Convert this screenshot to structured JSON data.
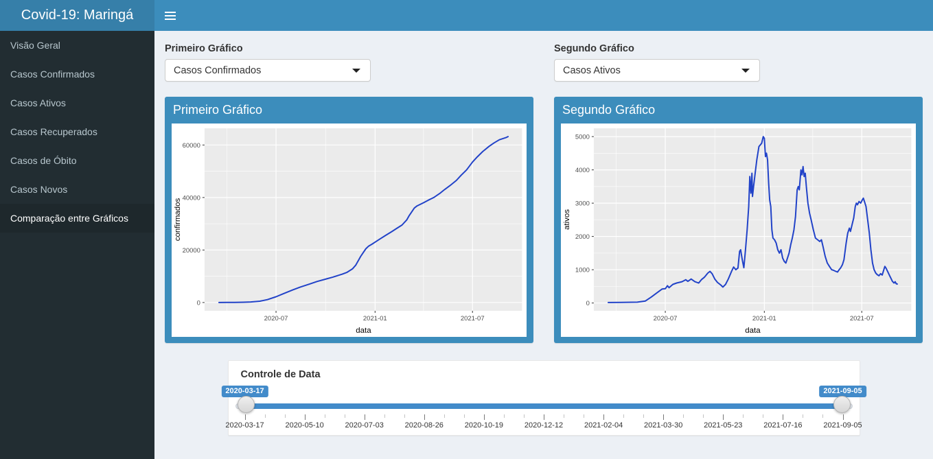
{
  "header": {
    "title": "Covid-19: Maringá"
  },
  "sidebar": {
    "items": [
      {
        "name": "visao-geral",
        "label": "Visão Geral",
        "active": false
      },
      {
        "name": "casos-confirmados",
        "label": "Casos Confirmados",
        "active": false
      },
      {
        "name": "casos-ativos",
        "label": "Casos Ativos",
        "active": false
      },
      {
        "name": "casos-recuperados",
        "label": "Casos Recuperados",
        "active": false
      },
      {
        "name": "casos-de-obito",
        "label": "Casos de Óbito",
        "active": false
      },
      {
        "name": "casos-novos",
        "label": "Casos Novos",
        "active": false
      },
      {
        "name": "comparacao-entre-graficos",
        "label": "Comparação entre Gráficos",
        "active": true
      }
    ]
  },
  "controls": {
    "first": {
      "label": "Primeiro Gráfico",
      "value": "Casos Confirmados"
    },
    "second": {
      "label": "Segundo Gráfico",
      "value": "Casos Ativos"
    }
  },
  "boxes": {
    "first_title": "Primeiro Gráfico",
    "second_title": "Segundo Gráfico"
  },
  "slider": {
    "title": "Controle de Data",
    "from_value": "2020-03-17",
    "to_value": "2021-09-05",
    "ticks": [
      "2020-03-17",
      "2020-05-10",
      "2020-07-03",
      "2020-08-26",
      "2020-10-19",
      "2020-12-12",
      "2021-02-04",
      "2021-03-30",
      "2021-05-23",
      "2021-07-16",
      "2021-09-05"
    ]
  },
  "colors": {
    "navbar": "#3c8dbc",
    "logo_bg": "#367fa9",
    "box_bg": "#3c8dbc",
    "sidebar_bg": "#222d32",
    "sidebar_active_bg": "#1e282c",
    "sidebar_text": "#b8c7ce",
    "content_bg": "#ecf0f5",
    "panel_bg": "#ebebeb",
    "line": "#2142c8",
    "slider_accent": "#428bca"
  },
  "chart_data": [
    {
      "type": "line",
      "title": "Primeiro Gráfico",
      "xlabel": "data",
      "ylabel": "confirmados",
      "legend": "none",
      "grid": true,
      "x_major": [
        {
          "date": "2020-07-01",
          "label": "2020-07"
        },
        {
          "date": "2021-01-01",
          "label": "2021-01"
        },
        {
          "date": "2021-07-01",
          "label": "2021-07"
        }
      ],
      "x_minor": [
        "2020-04-01",
        "2020-10-01",
        "2021-04-01",
        "2021-10-01"
      ],
      "y_major": [
        0,
        20000,
        40000,
        60000
      ],
      "y_minor": [
        10000,
        30000,
        50000
      ],
      "ylim": [
        0,
        63200
      ],
      "points": [
        [
          "2020-03-17",
          5
        ],
        [
          "2020-04-01",
          30
        ],
        [
          "2020-04-15",
          60
        ],
        [
          "2020-05-01",
          120
        ],
        [
          "2020-05-15",
          220
        ],
        [
          "2020-06-01",
          500
        ],
        [
          "2020-06-15",
          1100
        ],
        [
          "2020-07-01",
          2200
        ],
        [
          "2020-07-15",
          3400
        ],
        [
          "2020-08-01",
          4800
        ],
        [
          "2020-08-15",
          5900
        ],
        [
          "2020-09-01",
          7000
        ],
        [
          "2020-09-15",
          8000
        ],
        [
          "2020-10-01",
          8900
        ],
        [
          "2020-10-15",
          9700
        ],
        [
          "2020-11-01",
          10800
        ],
        [
          "2020-11-10",
          11500
        ],
        [
          "2020-11-20",
          12800
        ],
        [
          "2020-11-26",
          14200
        ],
        [
          "2020-12-01",
          16000
        ],
        [
          "2020-12-05",
          17500
        ],
        [
          "2020-12-10",
          19000
        ],
        [
          "2020-12-15",
          20500
        ],
        [
          "2020-12-20",
          21500
        ],
        [
          "2020-12-26",
          22200
        ],
        [
          "2021-01-01",
          23000
        ],
        [
          "2021-01-10",
          24200
        ],
        [
          "2021-01-20",
          25500
        ],
        [
          "2021-02-01",
          27000
        ],
        [
          "2021-02-10",
          28200
        ],
        [
          "2021-02-20",
          29500
        ],
        [
          "2021-03-01",
          31500
        ],
        [
          "2021-03-05",
          33000
        ],
        [
          "2021-03-10",
          34500
        ],
        [
          "2021-03-15",
          36000
        ],
        [
          "2021-03-20",
          36800
        ],
        [
          "2021-04-01",
          38000
        ],
        [
          "2021-04-10",
          39000
        ],
        [
          "2021-04-20",
          40000
        ],
        [
          "2021-05-01",
          41500
        ],
        [
          "2021-05-10",
          43000
        ],
        [
          "2021-05-20",
          44500
        ],
        [
          "2021-06-01",
          46500
        ],
        [
          "2021-06-10",
          48500
        ],
        [
          "2021-06-20",
          50500
        ],
        [
          "2021-07-01",
          53500
        ],
        [
          "2021-07-10",
          55500
        ],
        [
          "2021-07-20",
          57500
        ],
        [
          "2021-08-01",
          59500
        ],
        [
          "2021-08-10",
          60800
        ],
        [
          "2021-08-20",
          62000
        ],
        [
          "2021-09-01",
          62800
        ],
        [
          "2021-09-05",
          63200
        ]
      ]
    },
    {
      "type": "line",
      "title": "Segundo Gráfico",
      "xlabel": "data",
      "ylabel": "ativos",
      "legend": "none",
      "grid": true,
      "x_major": [
        {
          "date": "2020-07-01",
          "label": "2020-07"
        },
        {
          "date": "2021-01-01",
          "label": "2021-01"
        },
        {
          "date": "2021-07-01",
          "label": "2021-07"
        }
      ],
      "x_minor": [
        "2020-04-01",
        "2020-10-01",
        "2021-04-01",
        "2021-10-01"
      ],
      "y_major": [
        0,
        1000,
        2000,
        3000,
        4000,
        5000
      ],
      "y_minor": [
        500,
        1500,
        2500,
        3500,
        4500
      ],
      "ylim": [
        0,
        5000
      ],
      "points": [
        [
          "2020-03-17",
          15
        ],
        [
          "2020-04-10",
          20
        ],
        [
          "2020-05-10",
          25
        ],
        [
          "2020-05-25",
          60
        ],
        [
          "2020-06-05",
          180
        ],
        [
          "2020-06-15",
          300
        ],
        [
          "2020-06-25",
          420
        ],
        [
          "2020-07-01",
          430
        ],
        [
          "2020-07-05",
          520
        ],
        [
          "2020-07-08",
          460
        ],
        [
          "2020-07-15",
          560
        ],
        [
          "2020-07-22",
          600
        ],
        [
          "2020-08-01",
          640
        ],
        [
          "2020-08-08",
          700
        ],
        [
          "2020-08-12",
          650
        ],
        [
          "2020-08-18",
          720
        ],
        [
          "2020-08-25",
          640
        ],
        [
          "2020-09-01",
          600
        ],
        [
          "2020-09-06",
          700
        ],
        [
          "2020-09-12",
          780
        ],
        [
          "2020-09-18",
          900
        ],
        [
          "2020-09-22",
          950
        ],
        [
          "2020-09-26",
          880
        ],
        [
          "2020-10-01",
          720
        ],
        [
          "2020-10-06",
          620
        ],
        [
          "2020-10-12",
          540
        ],
        [
          "2020-10-16",
          480
        ],
        [
          "2020-10-21",
          560
        ],
        [
          "2020-10-26",
          720
        ],
        [
          "2020-11-01",
          950
        ],
        [
          "2020-11-05",
          1080
        ],
        [
          "2020-11-09",
          1000
        ],
        [
          "2020-11-13",
          1050
        ],
        [
          "2020-11-16",
          1550
        ],
        [
          "2020-11-18",
          1600
        ],
        [
          "2020-11-21",
          1300
        ],
        [
          "2020-11-24",
          1060
        ],
        [
          "2020-11-27",
          1600
        ],
        [
          "2020-11-30",
          2200
        ],
        [
          "2020-12-03",
          2900
        ],
        [
          "2020-12-05",
          3800
        ],
        [
          "2020-12-07",
          3300
        ],
        [
          "2020-12-09",
          3900
        ],
        [
          "2020-12-10",
          3200
        ],
        [
          "2020-12-12",
          3500
        ],
        [
          "2020-12-15",
          3900
        ],
        [
          "2020-12-18",
          4300
        ],
        [
          "2020-12-22",
          4700
        ],
        [
          "2020-12-27",
          4800
        ],
        [
          "2020-12-30",
          5000
        ],
        [
          "2021-01-01",
          4950
        ],
        [
          "2021-01-03",
          4400
        ],
        [
          "2021-01-05",
          4500
        ],
        [
          "2021-01-07",
          4300
        ],
        [
          "2021-01-09",
          3600
        ],
        [
          "2021-01-11",
          3100
        ],
        [
          "2021-01-13",
          2900
        ],
        [
          "2021-01-15",
          2200
        ],
        [
          "2021-01-17",
          1950
        ],
        [
          "2021-01-20",
          1900
        ],
        [
          "2021-01-23",
          1800
        ],
        [
          "2021-01-26",
          1600
        ],
        [
          "2021-01-29",
          1500
        ],
        [
          "2021-02-01",
          1600
        ],
        [
          "2021-02-04",
          1350
        ],
        [
          "2021-02-07",
          1250
        ],
        [
          "2021-02-10",
          1200
        ],
        [
          "2021-02-13",
          1350
        ],
        [
          "2021-02-16",
          1500
        ],
        [
          "2021-02-19",
          1750
        ],
        [
          "2021-02-22",
          1950
        ],
        [
          "2021-02-25",
          2200
        ],
        [
          "2021-02-28",
          2600
        ],
        [
          "2021-03-03",
          3400
        ],
        [
          "2021-03-05",
          3500
        ],
        [
          "2021-03-07",
          3400
        ],
        [
          "2021-03-10",
          4000
        ],
        [
          "2021-03-12",
          3850
        ],
        [
          "2021-03-14",
          4100
        ],
        [
          "2021-03-16",
          3800
        ],
        [
          "2021-03-18",
          3900
        ],
        [
          "2021-03-20",
          3500
        ],
        [
          "2021-03-23",
          3000
        ],
        [
          "2021-03-26",
          2700
        ],
        [
          "2021-03-29",
          2500
        ],
        [
          "2021-04-02",
          2200
        ],
        [
          "2021-04-06",
          1950
        ],
        [
          "2021-04-10",
          1900
        ],
        [
          "2021-04-14",
          1850
        ],
        [
          "2021-04-17",
          1900
        ],
        [
          "2021-04-20",
          1700
        ],
        [
          "2021-04-24",
          1400
        ],
        [
          "2021-04-28",
          1200
        ],
        [
          "2021-05-02",
          1100
        ],
        [
          "2021-05-06",
          1000
        ],
        [
          "2021-05-10",
          980
        ],
        [
          "2021-05-14",
          950
        ],
        [
          "2021-05-17",
          930
        ],
        [
          "2021-05-20",
          1000
        ],
        [
          "2021-05-23",
          1060
        ],
        [
          "2021-05-26",
          1150
        ],
        [
          "2021-05-29",
          1300
        ],
        [
          "2021-06-02",
          1800
        ],
        [
          "2021-06-05",
          2100
        ],
        [
          "2021-06-08",
          2250
        ],
        [
          "2021-06-10",
          2150
        ],
        [
          "2021-06-13",
          2350
        ],
        [
          "2021-06-16",
          2550
        ],
        [
          "2021-06-19",
          2900
        ],
        [
          "2021-06-21",
          3000
        ],
        [
          "2021-06-23",
          2950
        ],
        [
          "2021-06-26",
          3050
        ],
        [
          "2021-06-29",
          3000
        ],
        [
          "2021-07-02",
          3100
        ],
        [
          "2021-07-04",
          3150
        ],
        [
          "2021-07-06",
          3050
        ],
        [
          "2021-07-09",
          2900
        ],
        [
          "2021-07-12",
          2500
        ],
        [
          "2021-07-15",
          2100
        ],
        [
          "2021-07-18",
          1600
        ],
        [
          "2021-07-21",
          1200
        ],
        [
          "2021-07-24",
          1000
        ],
        [
          "2021-07-27",
          900
        ],
        [
          "2021-07-30",
          850
        ],
        [
          "2021-08-02",
          820
        ],
        [
          "2021-08-05",
          880
        ],
        [
          "2021-08-08",
          840
        ],
        [
          "2021-08-11",
          1000
        ],
        [
          "2021-08-13",
          1100
        ],
        [
          "2021-08-15",
          1050
        ],
        [
          "2021-08-18",
          950
        ],
        [
          "2021-08-21",
          850
        ],
        [
          "2021-08-24",
          750
        ],
        [
          "2021-08-27",
          650
        ],
        [
          "2021-08-30",
          600
        ],
        [
          "2021-09-01",
          640
        ],
        [
          "2021-09-03",
          580
        ],
        [
          "2021-09-05",
          570
        ]
      ]
    }
  ]
}
